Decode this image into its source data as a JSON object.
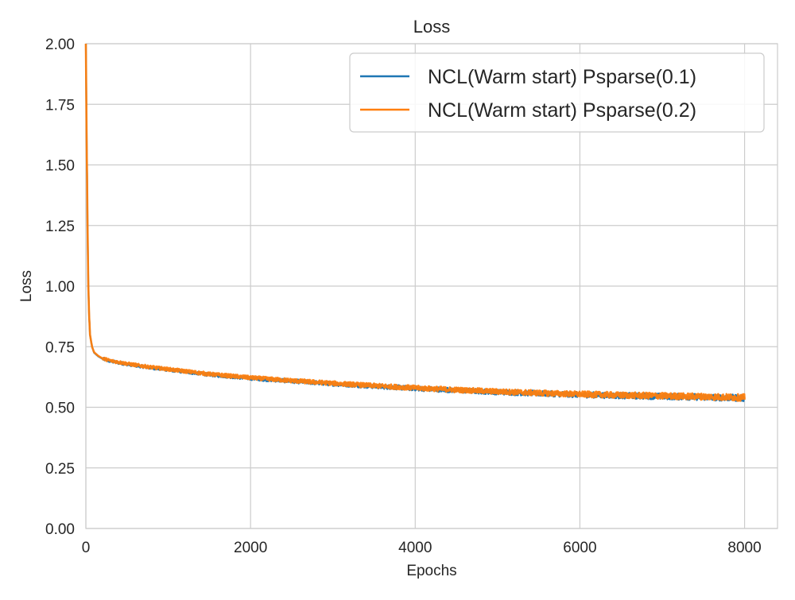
{
  "chart_data": {
    "type": "line",
    "title": "Loss",
    "xlabel": "Epochs",
    "ylabel": "Loss",
    "xlim": [
      0,
      8400
    ],
    "ylim": [
      0.0,
      2.0
    ],
    "xticks": [
      0,
      2000,
      4000,
      6000,
      8000
    ],
    "xtick_labels": [
      "0",
      "2000",
      "4000",
      "6000",
      "8000"
    ],
    "yticks": [
      0.0,
      0.25,
      0.5,
      0.75,
      1.0,
      1.25,
      1.5,
      1.75,
      2.0
    ],
    "ytick_labels": [
      "0.00",
      "0.25",
      "0.50",
      "0.75",
      "1.00",
      "1.25",
      "1.50",
      "1.75",
      "2.00"
    ],
    "grid": true,
    "legend_position": "top-right",
    "series": [
      {
        "name": "NCL(Warm start) Psparse(0.1)",
        "color": "#1f77b4",
        "x": [
          0,
          5,
          10,
          20,
          30,
          40,
          50,
          75,
          100,
          150,
          200,
          300,
          500,
          750,
          1000,
          1500,
          2000,
          2500,
          3000,
          3500,
          4000,
          4500,
          5000,
          5500,
          6000,
          6500,
          7000,
          7500,
          8000
        ],
        "y": [
          2.0,
          1.8,
          1.6,
          1.25,
          1.0,
          0.88,
          0.8,
          0.75,
          0.725,
          0.71,
          0.7,
          0.69,
          0.678,
          0.665,
          0.655,
          0.635,
          0.62,
          0.608,
          0.597,
          0.587,
          0.578,
          0.57,
          0.563,
          0.557,
          0.552,
          0.548,
          0.545,
          0.542,
          0.538
        ]
      },
      {
        "name": "NCL(Warm start) Psparse(0.2)",
        "color": "#ff7f0e",
        "x": [
          0,
          5,
          10,
          20,
          30,
          40,
          50,
          75,
          100,
          150,
          200,
          300,
          500,
          750,
          1000,
          1500,
          2000,
          2500,
          3000,
          3500,
          4000,
          4500,
          5000,
          5500,
          6000,
          6500,
          7000,
          7500,
          8000
        ],
        "y": [
          2.0,
          1.8,
          1.6,
          1.25,
          1.0,
          0.88,
          0.8,
          0.75,
          0.727,
          0.712,
          0.702,
          0.692,
          0.68,
          0.667,
          0.657,
          0.637,
          0.622,
          0.61,
          0.599,
          0.589,
          0.58,
          0.572,
          0.565,
          0.559,
          0.554,
          0.55,
          0.547,
          0.544,
          0.54
        ]
      }
    ]
  }
}
